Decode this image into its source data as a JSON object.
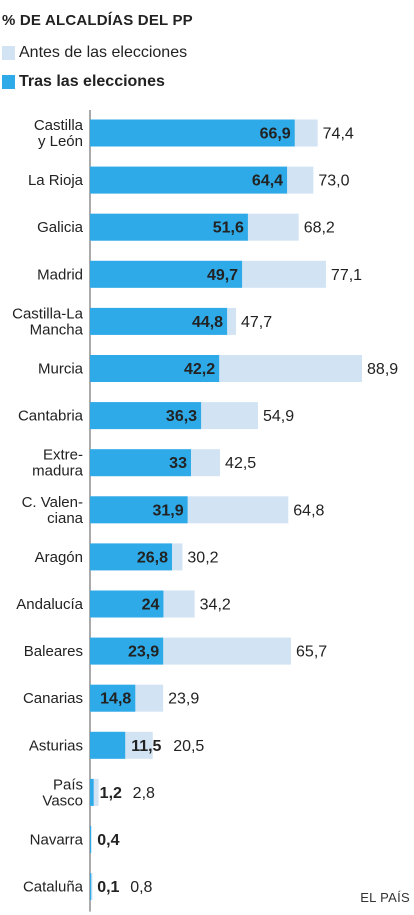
{
  "title": "% DE ALCALDÍAS DEL PP",
  "legend": [
    {
      "label": "Antes de las elecciones",
      "color": "#d2e3f3"
    },
    {
      "label": "Tras las elecciones",
      "color": "#2eaae8"
    }
  ],
  "source": "EL PAÍS",
  "chart_data": {
    "type": "bar",
    "orientation": "horizontal",
    "categories": [
      [
        "Castilla",
        "y León"
      ],
      [
        "La Rioja"
      ],
      [
        "Galicia"
      ],
      [
        "Madrid"
      ],
      [
        "Castilla-La",
        "Mancha"
      ],
      [
        "Murcia"
      ],
      [
        "Cantabria"
      ],
      [
        "Extre-",
        "madura"
      ],
      [
        "C. Valen-",
        "ciana"
      ],
      [
        "Aragón"
      ],
      [
        "Andalucía"
      ],
      [
        "Baleares"
      ],
      [
        "Canarias"
      ],
      [
        "Asturias"
      ],
      [
        "País",
        "Vasco"
      ],
      [
        "Navarra"
      ],
      [
        "Cataluña"
      ]
    ],
    "series": [
      {
        "name": "Antes de las elecciones",
        "color": "#d2e3f3",
        "values": [
          74.4,
          73.0,
          68.2,
          77.1,
          47.7,
          88.9,
          54.9,
          42.5,
          64.8,
          30.2,
          34.2,
          65.7,
          23.9,
          20.5,
          2.8,
          null,
          0.8
        ],
        "labels": [
          "74,4",
          "73,0",
          "68,2",
          "77,1",
          "47,7",
          "88,9",
          "54,9",
          "42,5",
          "64,8",
          "30,2",
          "34,2",
          "65,7",
          "23,9",
          "20,5",
          "2,8",
          "",
          "0,8"
        ]
      },
      {
        "name": "Tras las elecciones",
        "color": "#2eaae8",
        "values": [
          66.9,
          64.4,
          51.6,
          49.7,
          44.8,
          42.2,
          36.3,
          33,
          31.9,
          26.8,
          24,
          23.9,
          14.8,
          11.5,
          1.2,
          0.4,
          0.1
        ],
        "labels": [
          "66,9",
          "64,4",
          "51,6",
          "49,7",
          "44,8",
          "42,2",
          "36,3",
          "33",
          "31,9",
          "26,8",
          "24",
          "23,9",
          "14,8",
          "11,5",
          "1,2",
          "0,4",
          "0,1"
        ]
      }
    ],
    "xlim": [
      0,
      100
    ],
    "grid": false,
    "legend_position": "top-left"
  }
}
